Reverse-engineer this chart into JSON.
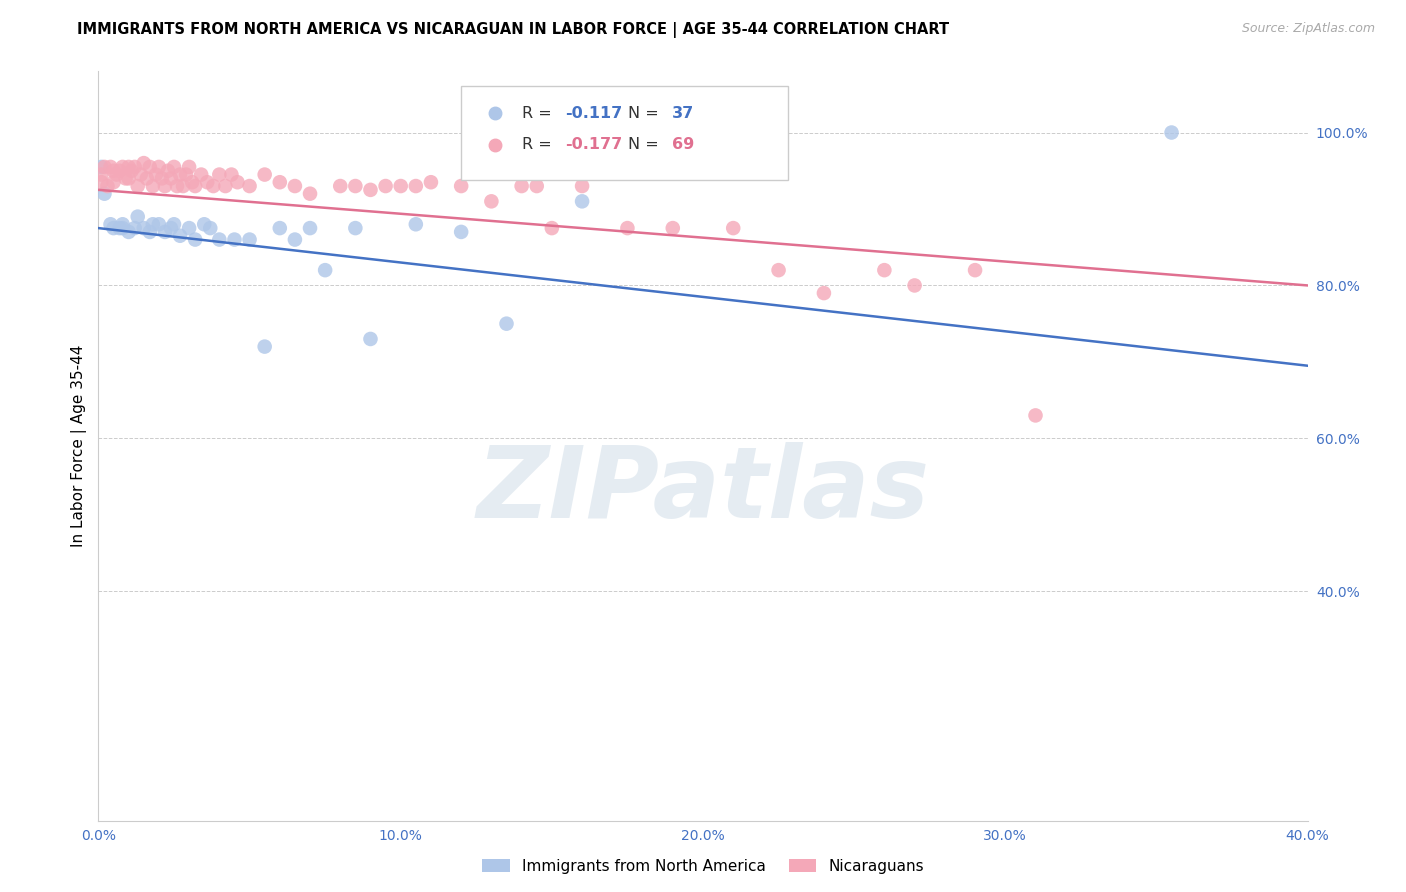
{
  "title": "IMMIGRANTS FROM NORTH AMERICA VS NICARAGUAN IN LABOR FORCE | AGE 35-44 CORRELATION CHART",
  "source": "Source: ZipAtlas.com",
  "xlim": [
    0.0,
    0.4
  ],
  "ylim": [
    0.1,
    1.08
  ],
  "xtick_vals": [
    0.0,
    0.1,
    0.2,
    0.3,
    0.4
  ],
  "xtick_labels": [
    "0.0%",
    "10.0%",
    "20.0%",
    "30.0%",
    "40.0%"
  ],
  "ytick_right_vals": [
    0.4,
    0.6,
    0.8,
    1.0
  ],
  "ytick_right_labels": [
    "40.0%",
    "60.0%",
    "80.0%",
    "100.0%"
  ],
  "legend_entries": [
    {
      "scatter_color": "#aec6e8",
      "line_color": "#4472c4",
      "label": "Immigrants from North America",
      "R": "-0.117",
      "N": "37"
    },
    {
      "scatter_color": "#f4a8b8",
      "line_color": "#e07090",
      "label": "Nicaraguans",
      "R": "-0.177",
      "N": "69"
    }
  ],
  "blue_scatter_x": [
    0.001,
    0.002,
    0.004,
    0.005,
    0.007,
    0.008,
    0.008,
    0.01,
    0.012,
    0.013,
    0.015,
    0.017,
    0.018,
    0.02,
    0.022,
    0.024,
    0.025,
    0.027,
    0.03,
    0.032,
    0.035,
    0.037,
    0.04,
    0.045,
    0.05,
    0.055,
    0.06,
    0.065,
    0.07,
    0.075,
    0.085,
    0.09,
    0.105,
    0.12,
    0.135,
    0.16,
    0.355
  ],
  "blue_scatter_y": [
    0.955,
    0.92,
    0.88,
    0.875,
    0.875,
    0.88,
    0.875,
    0.87,
    0.875,
    0.89,
    0.875,
    0.87,
    0.88,
    0.88,
    0.87,
    0.875,
    0.88,
    0.865,
    0.875,
    0.86,
    0.88,
    0.875,
    0.86,
    0.86,
    0.86,
    0.72,
    0.875,
    0.86,
    0.875,
    0.82,
    0.875,
    0.73,
    0.88,
    0.87,
    0.75,
    0.91,
    1.0
  ],
  "pink_scatter_x": [
    0.001,
    0.001,
    0.002,
    0.003,
    0.004,
    0.005,
    0.005,
    0.006,
    0.007,
    0.008,
    0.009,
    0.01,
    0.01,
    0.011,
    0.012,
    0.013,
    0.014,
    0.015,
    0.016,
    0.017,
    0.018,
    0.019,
    0.02,
    0.021,
    0.022,
    0.023,
    0.024,
    0.025,
    0.026,
    0.027,
    0.028,
    0.029,
    0.03,
    0.031,
    0.032,
    0.034,
    0.036,
    0.038,
    0.04,
    0.042,
    0.044,
    0.046,
    0.05,
    0.055,
    0.06,
    0.065,
    0.07,
    0.08,
    0.085,
    0.09,
    0.095,
    0.1,
    0.105,
    0.11,
    0.12,
    0.13,
    0.14,
    0.145,
    0.15,
    0.16,
    0.175,
    0.19,
    0.21,
    0.225,
    0.24,
    0.26,
    0.27,
    0.29,
    0.31
  ],
  "pink_scatter_y": [
    0.945,
    0.935,
    0.955,
    0.93,
    0.955,
    0.935,
    0.95,
    0.945,
    0.95,
    0.955,
    0.94,
    0.955,
    0.94,
    0.95,
    0.955,
    0.93,
    0.945,
    0.96,
    0.94,
    0.955,
    0.93,
    0.945,
    0.955,
    0.94,
    0.93,
    0.95,
    0.94,
    0.955,
    0.93,
    0.945,
    0.93,
    0.945,
    0.955,
    0.935,
    0.93,
    0.945,
    0.935,
    0.93,
    0.945,
    0.93,
    0.945,
    0.935,
    0.93,
    0.945,
    0.935,
    0.93,
    0.92,
    0.93,
    0.93,
    0.925,
    0.93,
    0.93,
    0.93,
    0.935,
    0.93,
    0.91,
    0.93,
    0.93,
    0.875,
    0.93,
    0.875,
    0.875,
    0.875,
    0.82,
    0.79,
    0.82,
    0.8,
    0.82,
    0.63
  ],
  "blue_line": {
    "x0": 0.0,
    "x1": 0.4,
    "y0": 0.875,
    "y1": 0.695
  },
  "pink_line": {
    "x0": 0.0,
    "x1": 0.4,
    "y0": 0.925,
    "y1": 0.8
  },
  "axis_color": "#4472c4",
  "grid_color": "#cccccc",
  "watermark_text": "ZIPatlas",
  "watermark_color": "#d0dde8"
}
